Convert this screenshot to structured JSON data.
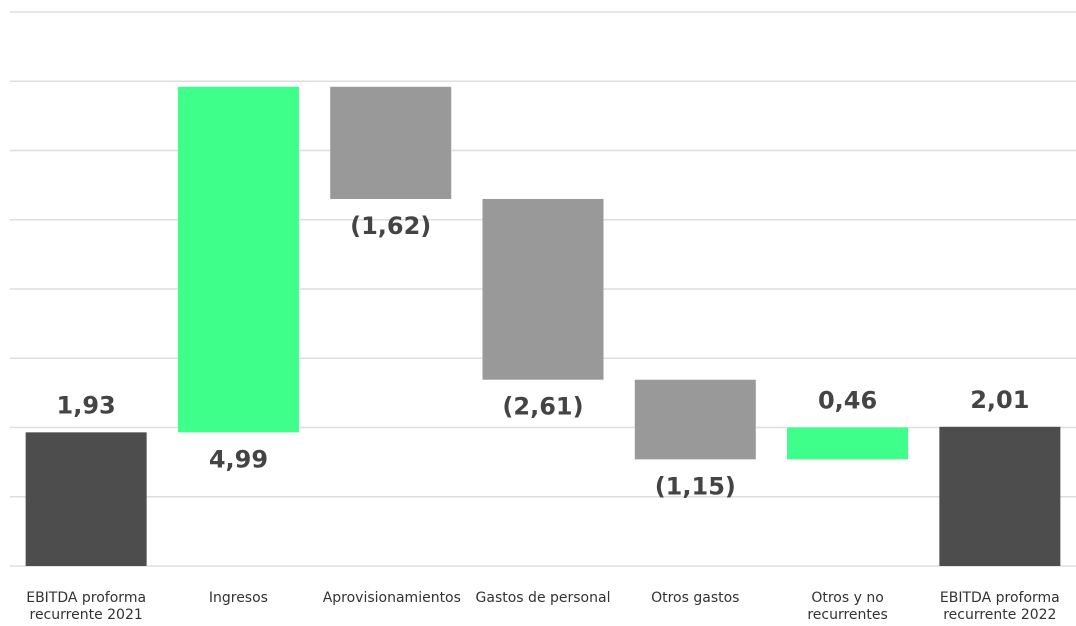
{
  "chart_data": {
    "type": "waterfall",
    "categories": [
      "EBITDA proforma recurrente 2021",
      "Ingresos",
      "Aprovisionamientos",
      "Gastos de personal",
      "Otros gastos",
      "Otros y no recurrentes",
      "EBITDA proforma recurrente 2022"
    ],
    "values": [
      1.93,
      4.99,
      -1.62,
      -2.61,
      -1.15,
      0.46,
      2.01
    ],
    "value_labels": [
      "1,93",
      "4,99",
      "(1,62)",
      "(2,61)",
      "(1,15)",
      "0,46",
      "2,01"
    ],
    "is_total": [
      true,
      false,
      false,
      false,
      false,
      false,
      true
    ],
    "colors": {
      "total": "#4d4d4d",
      "increase": "#3dff8a",
      "decrease": "#999999"
    },
    "ylim": [
      0,
      8
    ],
    "yticks": [
      0,
      1,
      2,
      3,
      4,
      5,
      6,
      7,
      8
    ],
    "grid": true
  }
}
